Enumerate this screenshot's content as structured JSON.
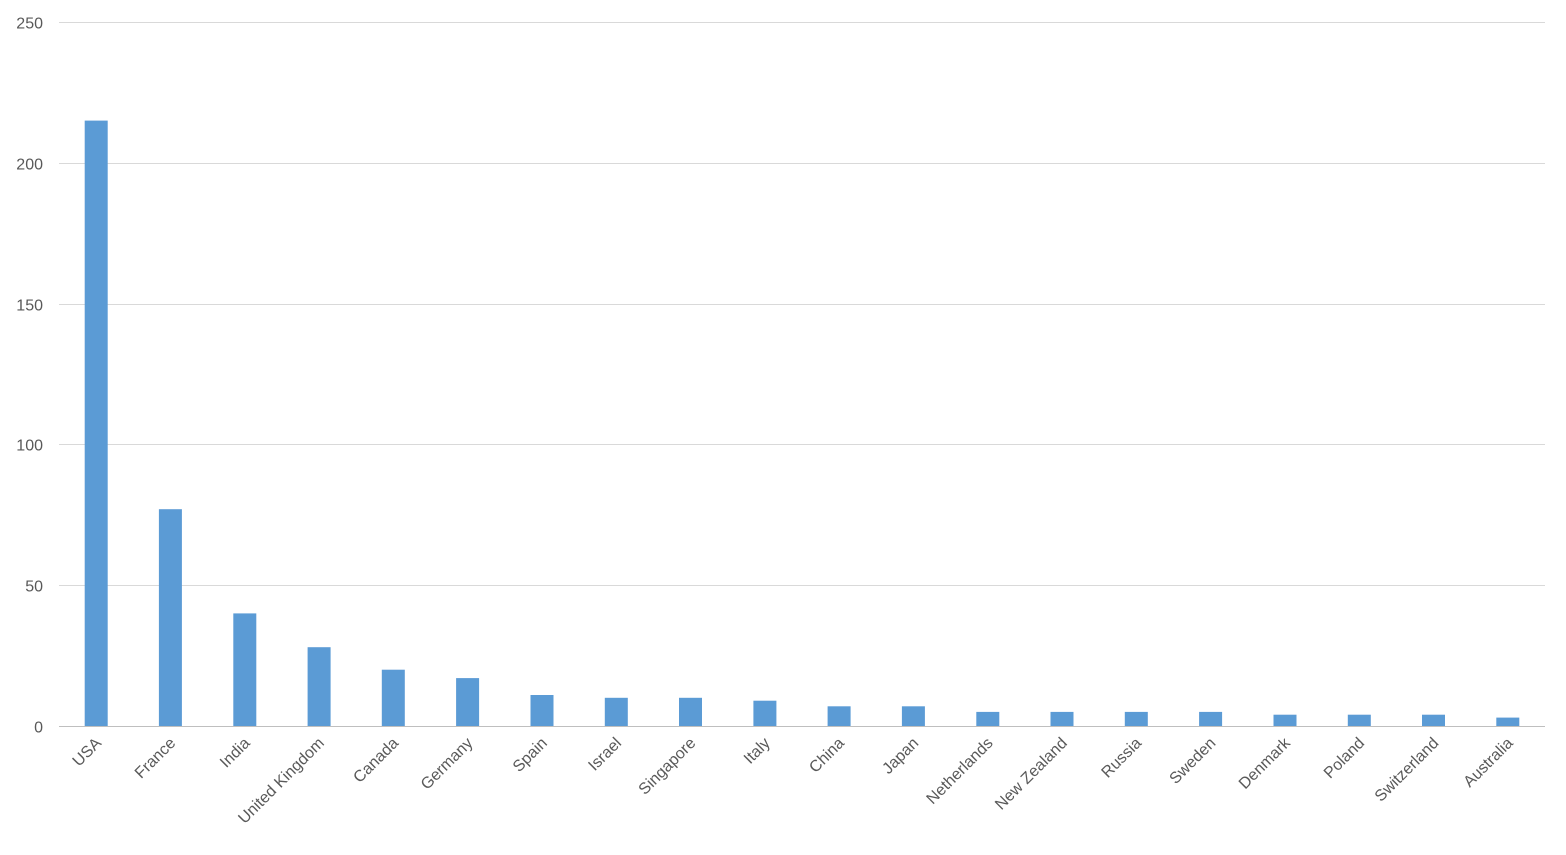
{
  "chart_data": {
    "type": "bar",
    "title": "",
    "xlabel": "",
    "ylabel": "",
    "categories": [
      "USA",
      "France",
      "India",
      "United Kingdom",
      "Canada",
      "Germany",
      "Spain",
      "Israel",
      "Singapore",
      "Italy",
      "China",
      "Japan",
      "Netherlands",
      "New Zealand",
      "Russia",
      "Sweden",
      "Denmark",
      "Poland",
      "Switzerland",
      "Australia"
    ],
    "values": [
      215,
      77,
      40,
      28,
      20,
      17,
      11,
      10,
      10,
      9,
      7,
      7,
      5,
      5,
      5,
      5,
      4,
      4,
      4,
      3
    ],
    "ylim": [
      0,
      250
    ],
    "yticks": [
      "0",
      "50",
      "100",
      "150",
      "200",
      "250"
    ],
    "grid": true,
    "legend": "none",
    "colors": {
      "bar": "#5b9bd5",
      "grid": "#d9d9d9",
      "tick_text": "#595959"
    }
  }
}
